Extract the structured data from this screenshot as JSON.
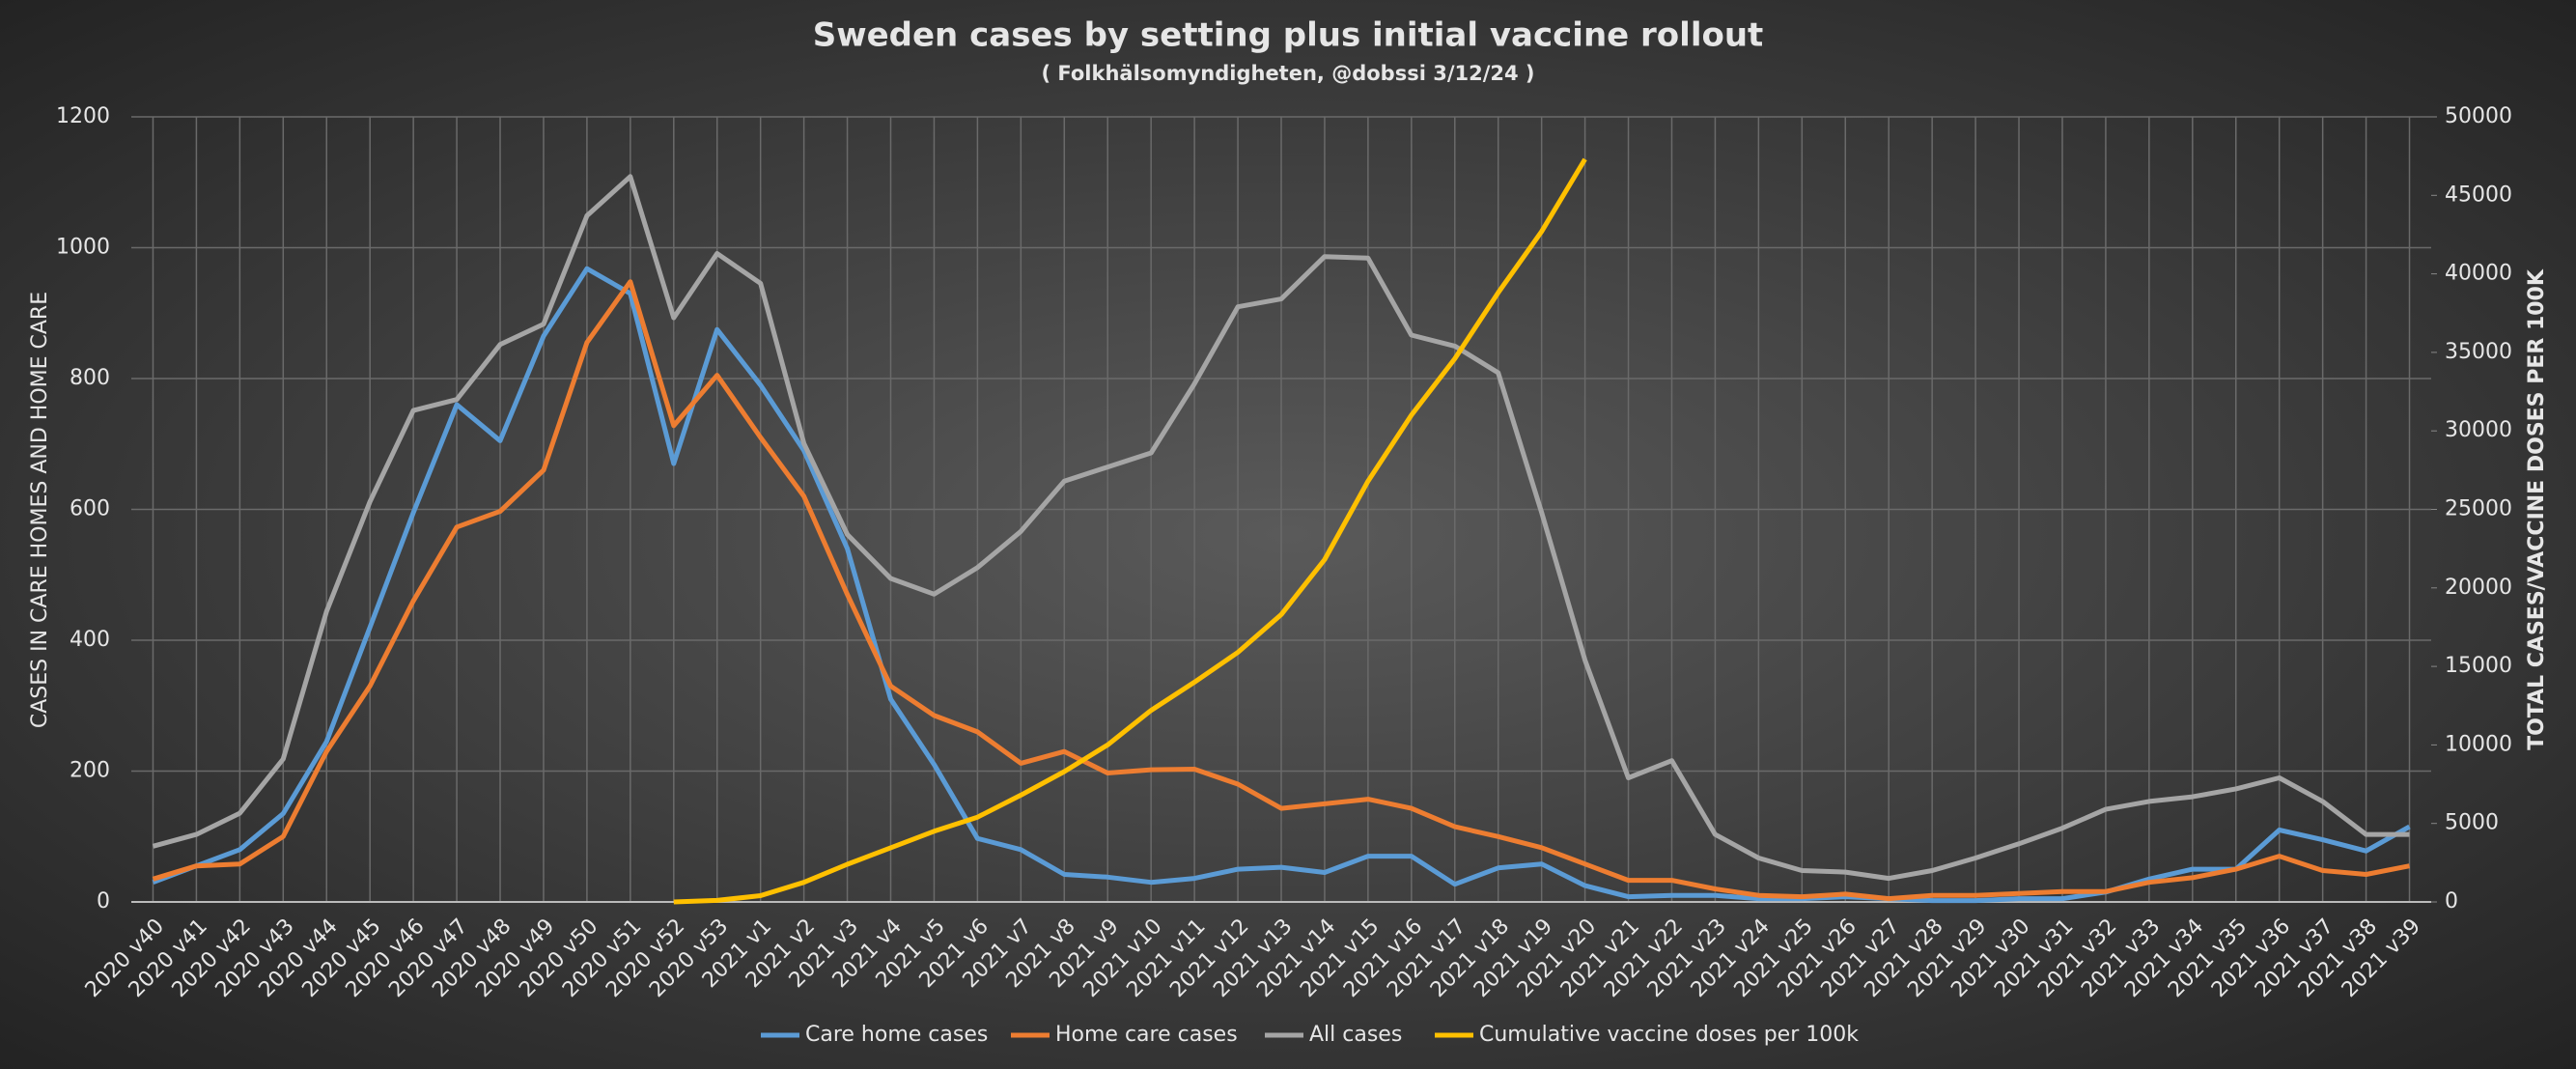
{
  "chart_data": {
    "type": "line",
    "title": "Sweden cases by setting plus initial vaccine rollout",
    "subtitle": "( Folkhälsomyndigheten, @dobssi 3/12/24 )",
    "y_label": "CASES IN CARE HOMES AND HOME CARE",
    "y2_label": "TOTAL CASES/VACCINE DOSES PER 100K",
    "categories": [
      "2020 v40",
      "2020 v41",
      "2020 v42",
      "2020 v43",
      "2020 v44",
      "2020 v45",
      "2020 v46",
      "2020 v47",
      "2020 v48",
      "2020 v49",
      "2020 v50",
      "2020 v51",
      "2020 v52",
      "2020 v53",
      "2021 v1",
      "2021 v2",
      "2021 v3",
      "2021 v4",
      "2021 v5",
      "2021 v6",
      "2021 v7",
      "2021 v8",
      "2021 v9",
      "2021 v10",
      "2021 v11",
      "2021 v12",
      "2021 v13",
      "2021 v14",
      "2021 v15",
      "2021 v16",
      "2021 v17",
      "2021 v18",
      "2021 v19",
      "2021 v20",
      "2021 v21",
      "2021 v22",
      "2021 v23",
      "2021 v24",
      "2021 v25",
      "2021 v26",
      "2021 v27",
      "2021 v28",
      "2021 v29",
      "2021 v30",
      "2021 v31",
      "2021 v32",
      "2021 v33",
      "2021 v34",
      "2021 v35",
      "2021 v36",
      "2021 v37",
      "2021 v38",
      "2021 v39"
    ],
    "series": [
      {
        "name": "Care home cases",
        "color": "#5b9bd5",
        "axis": "y",
        "values": [
          30,
          55,
          80,
          135,
          245,
          420,
          595,
          760,
          705,
          865,
          968,
          930,
          670,
          875,
          790,
          690,
          540,
          310,
          210,
          97,
          80,
          42,
          38,
          30,
          36,
          50,
          53,
          45,
          70,
          70,
          27,
          52,
          58,
          25,
          8,
          10,
          10,
          5,
          5,
          8,
          5,
          2,
          2,
          5,
          5,
          15,
          35,
          50,
          50,
          110,
          95,
          78,
          115
        ]
      },
      {
        "name": "Home care cases",
        "color": "#ed7d31",
        "axis": "y",
        "values": [
          35,
          55,
          58,
          100,
          230,
          330,
          460,
          573,
          597,
          660,
          855,
          948,
          728,
          805,
          710,
          620,
          470,
          330,
          285,
          260,
          212,
          230,
          197,
          202,
          203,
          180,
          143,
          150,
          157,
          143,
          115,
          100,
          83,
          58,
          33,
          33,
          20,
          10,
          8,
          12,
          5,
          10,
          10,
          13,
          16,
          16,
          30,
          37,
          50,
          70,
          48,
          42,
          55
        ]
      },
      {
        "name": "All cases",
        "color": "#a5a5a5",
        "axis": "y2",
        "values": [
          3550,
          4300,
          5650,
          9100,
          18500,
          25500,
          31300,
          32000,
          35500,
          36800,
          43700,
          46200,
          37200,
          41300,
          39400,
          29200,
          23400,
          20600,
          19600,
          21300,
          23600,
          26800,
          27700,
          28600,
          33000,
          37900,
          38400,
          41100,
          41000,
          36100,
          35400,
          33700,
          24800,
          15400,
          7900,
          9000,
          4300,
          2800,
          2000,
          1900,
          1500,
          2000,
          2800,
          3700,
          4700,
          5900,
          6400,
          6700,
          7200,
          7900,
          6400,
          4300,
          4300
        ]
      },
      {
        "name": "Cumulative vaccine doses per 100k",
        "color": "#ffc000",
        "axis": "y2",
        "values": [
          null,
          null,
          null,
          null,
          null,
          null,
          null,
          null,
          null,
          null,
          null,
          null,
          0,
          100,
          400,
          1250,
          2400,
          3450,
          4500,
          5400,
          6800,
          8300,
          10000,
          12200,
          14000,
          15900,
          18300,
          21800,
          26800,
          31000,
          34600,
          38800,
          42700,
          47300,
          null,
          null,
          null,
          null,
          null,
          null,
          null,
          null,
          null,
          null,
          null,
          null,
          null,
          null,
          null,
          null,
          null,
          null,
          null
        ]
      }
    ],
    "ylim": [
      0,
      1200
    ],
    "yticks": [
      0,
      200,
      400,
      600,
      800,
      1000,
      1200
    ],
    "y2lim": [
      0,
      50000
    ],
    "y2ticks": [
      0,
      5000,
      10000,
      15000,
      20000,
      25000,
      30000,
      35000,
      40000,
      45000,
      50000
    ],
    "grid": true,
    "legend": "bottom"
  }
}
